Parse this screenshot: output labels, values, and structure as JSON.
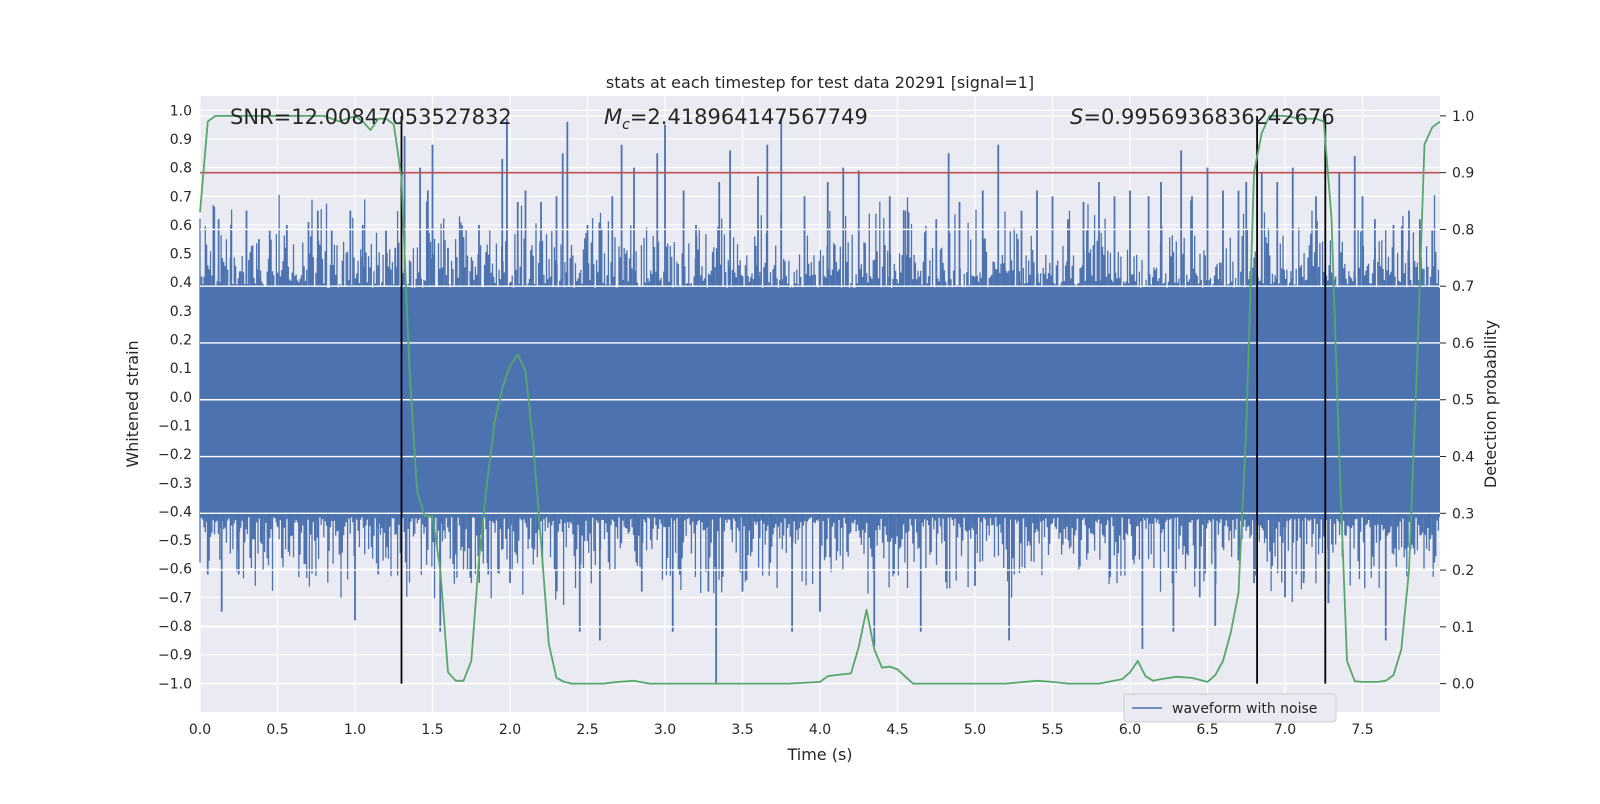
{
  "chart_data": {
    "type": "line",
    "title": "stats at each timestep for test data 20291 [signal=1]",
    "xlabel": "Time (s)",
    "ylabel": "Whitened strain",
    "y2label": "Detection probability",
    "xlim": [
      0.0,
      8.0
    ],
    "ylim": [
      -1.1,
      1.05
    ],
    "y2lim": [
      -0.05,
      1.035
    ],
    "x_ticks": [
      "0.0",
      "0.5",
      "1.0",
      "1.5",
      "2.0",
      "2.5",
      "3.0",
      "3.5",
      "4.0",
      "4.5",
      "5.0",
      "5.5",
      "6.0",
      "6.5",
      "7.0",
      "7.5"
    ],
    "y_ticks": [
      "1.0",
      "0.9",
      "0.8",
      "0.7",
      "0.6",
      "0.5",
      "0.4",
      "0.3",
      "0.2",
      "0.1",
      "0.0",
      "-0.1",
      "-0.2",
      "-0.3",
      "-0.4",
      "-0.5",
      "-0.6",
      "-0.7",
      "-0.8",
      "-0.9",
      "-1.0"
    ],
    "y2_ticks": [
      "1.0",
      "0.9",
      "0.8",
      "0.7",
      "0.6",
      "0.5",
      "0.4",
      "0.3",
      "0.2",
      "0.1",
      "0.0"
    ],
    "annotations": {
      "snr": "SNR=12.00847053527832",
      "mc_symbol": "M",
      "mc_sub": "c",
      "mc_value": "=2.418964147567749",
      "s_symbol": "S",
      "s_value": "=0.9956936836242676"
    },
    "threshold": 0.9,
    "vertical_markers": [
      1.3,
      6.82,
      7.26
    ],
    "legend": [
      "waveform with noise"
    ],
    "series": [
      {
        "name": "waveform with noise",
        "color": "#4c72b0",
        "band": {
          "lower": -0.42,
          "upper": 0.38
        },
        "envelope_peaks": [
          [
            0.01,
            0.42
          ],
          [
            0.05,
            -0.62
          ],
          [
            0.12,
            0.62
          ],
          [
            0.14,
            -0.75
          ],
          [
            0.2,
            0.6
          ],
          [
            0.25,
            -0.62
          ],
          [
            0.3,
            0.65
          ],
          [
            0.38,
            0.55
          ],
          [
            0.45,
            0.58
          ],
          [
            0.5,
            -0.45
          ],
          [
            0.56,
            0.6
          ],
          [
            0.64,
            -0.55
          ],
          [
            0.7,
            0.61
          ],
          [
            0.76,
            0.65
          ],
          [
            0.85,
            0.58
          ],
          [
            0.9,
            -0.55
          ],
          [
            0.97,
            0.65
          ],
          [
            1.0,
            -0.78
          ],
          [
            1.05,
            0.6
          ],
          [
            1.15,
            -0.62
          ],
          [
            1.2,
            0.58
          ],
          [
            1.26,
            0.52
          ],
          [
            1.32,
            0.91
          ],
          [
            1.42,
            0.8
          ],
          [
            1.47,
            0.72
          ],
          [
            1.5,
            0.88
          ],
          [
            1.55,
            -0.82
          ],
          [
            1.6,
            0.52
          ],
          [
            1.65,
            -0.55
          ],
          [
            1.7,
            0.55
          ],
          [
            1.8,
            0.6
          ],
          [
            1.86,
            -0.62
          ],
          [
            1.95,
            0.83
          ],
          [
            1.98,
            0.97
          ],
          [
            2.0,
            -0.65
          ],
          [
            2.05,
            0.68
          ],
          [
            2.1,
            0.72
          ],
          [
            2.2,
            0.68
          ],
          [
            2.3,
            0.7
          ],
          [
            2.34,
            0.85
          ],
          [
            2.37,
            0.96
          ],
          [
            2.45,
            -0.82
          ],
          [
            2.5,
            0.6
          ],
          [
            2.58,
            -0.85
          ],
          [
            2.66,
            0.7
          ],
          [
            2.72,
            0.88
          ],
          [
            2.8,
            0.8
          ],
          [
            2.85,
            -0.68
          ],
          [
            2.95,
            0.85
          ],
          [
            3.0,
            0.95
          ],
          [
            3.05,
            -0.82
          ],
          [
            3.12,
            0.72
          ],
          [
            3.2,
            0.6
          ],
          [
            3.28,
            -0.68
          ],
          [
            3.33,
            -1.0
          ],
          [
            3.35,
            0.75
          ],
          [
            3.42,
            0.86
          ],
          [
            3.5,
            -0.68
          ],
          [
            3.6,
            0.77
          ],
          [
            3.66,
            0.88
          ],
          [
            3.75,
            0.97
          ],
          [
            3.82,
            -0.82
          ],
          [
            3.9,
            0.7
          ],
          [
            4.0,
            -0.75
          ],
          [
            4.05,
            0.75
          ],
          [
            4.15,
            0.8
          ],
          [
            4.25,
            0.79
          ],
          [
            4.35,
            -0.87
          ],
          [
            4.45,
            0.7
          ],
          [
            4.55,
            0.65
          ],
          [
            4.65,
            -0.82
          ],
          [
            4.75,
            0.62
          ],
          [
            4.83,
            0.85
          ],
          [
            4.9,
            0.68
          ],
          [
            5.0,
            -0.66
          ],
          [
            5.05,
            0.72
          ],
          [
            5.15,
            0.88
          ],
          [
            5.22,
            -0.85
          ],
          [
            5.3,
            0.65
          ],
          [
            5.4,
            0.72
          ],
          [
            5.5,
            0.7
          ],
          [
            5.6,
            0.62
          ],
          [
            5.7,
            0.68
          ],
          [
            5.8,
            0.75
          ],
          [
            5.9,
            0.7
          ],
          [
            6.0,
            0.72
          ],
          [
            6.08,
            -0.88
          ],
          [
            6.12,
            0.7
          ],
          [
            6.2,
            0.75
          ],
          [
            6.28,
            -0.82
          ],
          [
            6.33,
            0.86
          ],
          [
            6.4,
            0.7
          ],
          [
            6.45,
            -0.7
          ],
          [
            6.5,
            0.8
          ],
          [
            6.55,
            -0.8
          ],
          [
            6.6,
            0.72
          ],
          [
            6.7,
            0.72
          ],
          [
            6.75,
            0.75
          ],
          [
            6.8,
            -0.65
          ],
          [
            6.85,
            0.78
          ],
          [
            6.95,
            0.75
          ],
          [
            7.0,
            -0.7
          ],
          [
            7.05,
            0.8
          ],
          [
            7.12,
            -0.65
          ],
          [
            7.2,
            0.7
          ],
          [
            7.28,
            -0.72
          ],
          [
            7.35,
            0.78
          ],
          [
            7.45,
            0.84
          ],
          [
            7.5,
            0.7
          ],
          [
            7.58,
            0.62
          ],
          [
            7.65,
            -0.85
          ],
          [
            7.7,
            0.6
          ],
          [
            7.8,
            0.65
          ],
          [
            7.87,
            0.62
          ],
          [
            7.95,
            0.58
          ]
        ]
      },
      {
        "name": "Detection probability",
        "axis": "right",
        "color": "#55a868",
        "x": [
          0.0,
          0.05,
          0.1,
          0.2,
          0.4,
          0.6,
          0.8,
          0.9,
          1.0,
          1.05,
          1.1,
          1.15,
          1.2,
          1.25,
          1.3,
          1.35,
          1.4,
          1.45,
          1.5,
          1.55,
          1.6,
          1.65,
          1.7,
          1.75,
          1.8,
          1.85,
          1.9,
          1.95,
          2.0,
          2.05,
          2.1,
          2.15,
          2.2,
          2.25,
          2.3,
          2.35,
          2.4,
          2.5,
          2.6,
          2.7,
          2.8,
          2.9,
          3.0,
          3.2,
          3.5,
          3.8,
          4.0,
          4.05,
          4.1,
          4.2,
          4.25,
          4.3,
          4.35,
          4.4,
          4.45,
          4.5,
          4.6,
          4.7,
          4.8,
          5.0,
          5.2,
          5.4,
          5.5,
          5.6,
          5.8,
          5.95,
          6.0,
          6.05,
          6.1,
          6.15,
          6.2,
          6.3,
          6.4,
          6.5,
          6.55,
          6.6,
          6.65,
          6.7,
          6.75,
          6.8,
          6.85,
          6.9,
          7.0,
          7.1,
          7.2,
          7.25,
          7.3,
          7.35,
          7.4,
          7.45,
          7.5,
          7.6,
          7.65,
          7.7,
          7.75,
          7.8,
          7.85,
          7.9,
          7.95,
          8.0
        ],
        "values": [
          0.83,
          0.99,
          1.0,
          1.0,
          1.0,
          1.0,
          1.0,
          0.99,
          1.0,
          0.99,
          0.975,
          0.995,
          0.995,
          0.985,
          0.89,
          0.56,
          0.34,
          0.295,
          0.295,
          0.2,
          0.02,
          0.005,
          0.005,
          0.04,
          0.22,
          0.35,
          0.46,
          0.52,
          0.56,
          0.58,
          0.55,
          0.42,
          0.25,
          0.07,
          0.01,
          0.003,
          0.0,
          0.0,
          0.0,
          0.003,
          0.005,
          0.0,
          0.0,
          0.0,
          0.0,
          0.0,
          0.003,
          0.013,
          0.015,
          0.018,
          0.065,
          0.13,
          0.06,
          0.028,
          0.03,
          0.025,
          0.0,
          0.0,
          0.0,
          0.0,
          0.0,
          0.005,
          0.003,
          0.0,
          0.0,
          0.008,
          0.02,
          0.04,
          0.013,
          0.005,
          0.008,
          0.012,
          0.01,
          0.003,
          0.015,
          0.04,
          0.09,
          0.16,
          0.45,
          0.9,
          0.97,
          1.0,
          1.0,
          0.995,
          0.995,
          0.99,
          0.82,
          0.4,
          0.04,
          0.004,
          0.003,
          0.003,
          0.005,
          0.015,
          0.06,
          0.2,
          0.55,
          0.95,
          0.98,
          0.99
        ]
      }
    ]
  }
}
